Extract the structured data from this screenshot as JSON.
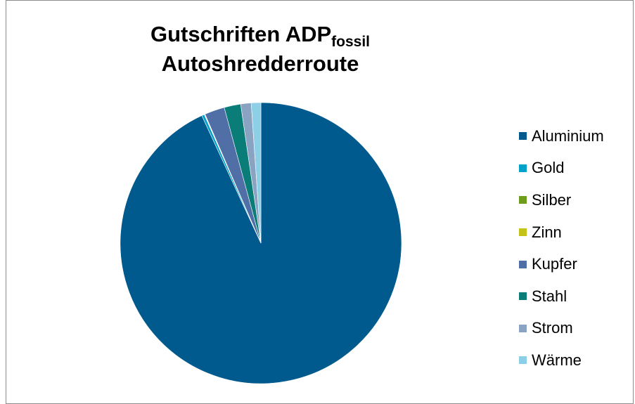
{
  "chart_data": {
    "type": "pie",
    "title_main": "Gutschriften ADP",
    "title_subscript": "fossil",
    "subtitle": "Autoshredderroute",
    "legend_position": "right",
    "slices": [
      {
        "label": "Aluminium",
        "value": 93.1,
        "color": "#005a8e"
      },
      {
        "label": "Gold",
        "value": 0.3,
        "color": "#00a2c8"
      },
      {
        "label": "Silber",
        "value": 0.05,
        "color": "#6e9d1d"
      },
      {
        "label": "Zinn",
        "value": 0.05,
        "color": "#c3c31a"
      },
      {
        "label": "Kupfer",
        "value": 2.3,
        "color": "#4f6fa6"
      },
      {
        "label": "Stahl",
        "value": 1.9,
        "color": "#0a7d78"
      },
      {
        "label": "Strom",
        "value": 1.2,
        "color": "#8aa3c3"
      },
      {
        "label": "Wärme",
        "value": 1.1,
        "color": "#8ccfe6"
      }
    ]
  }
}
